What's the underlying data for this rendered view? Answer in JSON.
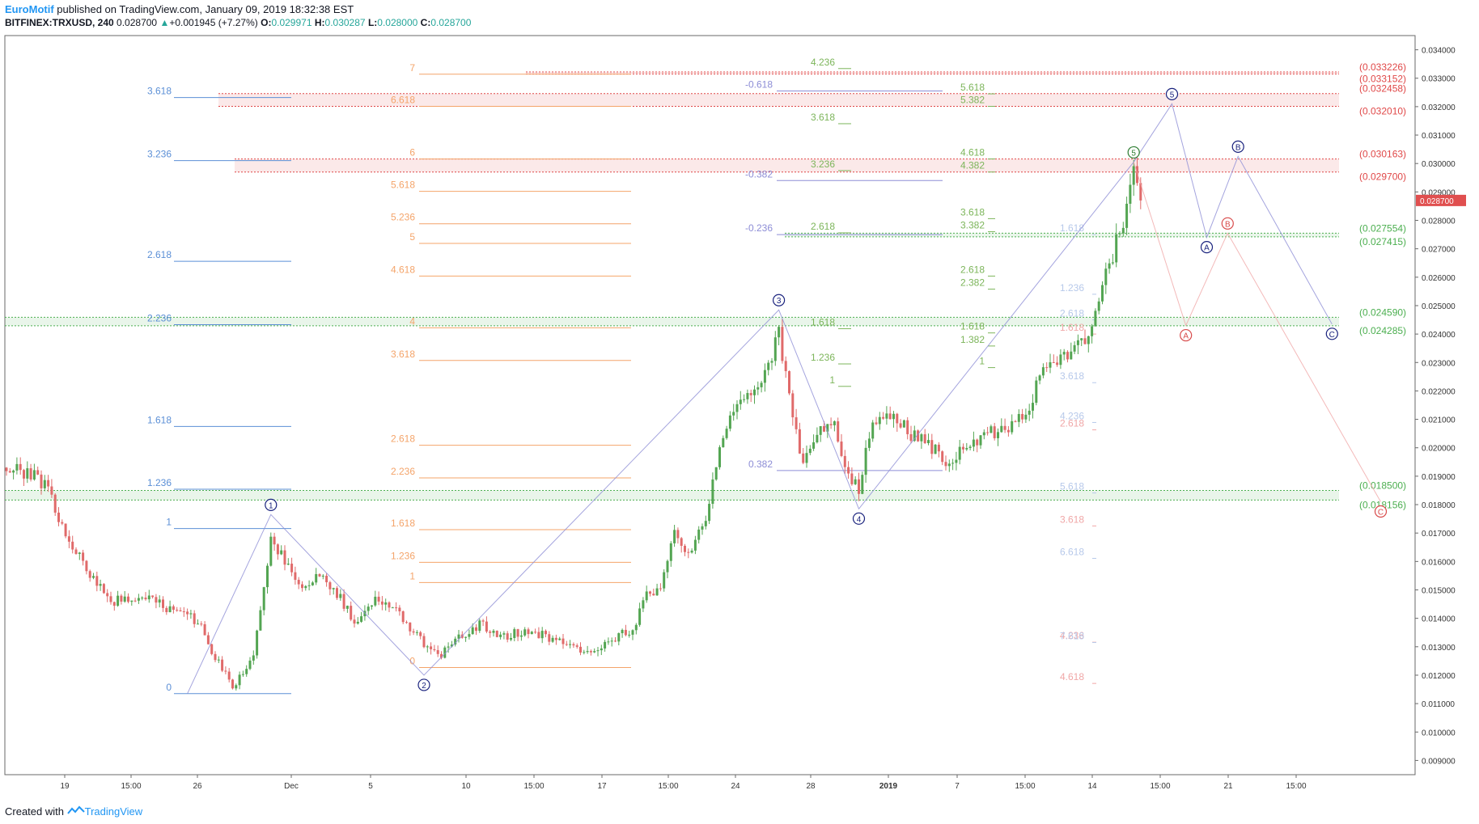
{
  "header": {
    "author": "EuroMotif",
    "published": "published on TradingView.com, January 09, 2019 18:32:38 EST",
    "symbol": "BITFINEX:TRXUSD, 240",
    "last": "0.028700",
    "change": "+0.001945 (+7.27%)",
    "o_label": "O:",
    "o": "0.029971",
    "h_label": "H:",
    "h": "0.030287",
    "l_label": "L:",
    "l": "0.028000",
    "c_label": "C:",
    "c": "0.028700"
  },
  "footer": {
    "created": "Created with",
    "brand": "TradingView"
  },
  "colors": {
    "up": "#53a552",
    "down": "#e06a6a",
    "blue_fib": "#5b8fd6",
    "orange_fib": "#f4a46a",
    "green_fib": "#7cb55a",
    "purple": "#8d8dd6",
    "red_zone": "#e04848",
    "green_zone": "#4caf50",
    "wave_blue": "#1a237e",
    "wave_red": "#d84a4a"
  },
  "chart_data": {
    "type": "candlestick",
    "ylim": [
      0.0085,
      0.0345
    ],
    "y_ticks": [
      "0.034000",
      "0.033000",
      "0.032000",
      "0.031000",
      "0.030000",
      "0.029000",
      "0.028000",
      "0.027000",
      "0.026000",
      "0.025000",
      "0.024000",
      "0.023000",
      "0.022000",
      "0.021000",
      "0.020000",
      "0.019000",
      "0.018000",
      "0.017000",
      "0.016000",
      "0.015000",
      "0.014000",
      "0.013000",
      "0.012000",
      "0.011000",
      "0.010000",
      "0.009000"
    ],
    "x_ticks": [
      "19",
      "15:00",
      "26",
      "Dec",
      "5",
      "10",
      "15:00",
      "17",
      "15:00",
      "24",
      "28",
      "2019",
      "7",
      "15:00",
      "14",
      "15:00",
      "21",
      "15:00"
    ],
    "current_price": "0.028700",
    "anchors": [
      {
        "b": 0,
        "p": 0.0193
      },
      {
        "b": 8,
        "p": 0.019
      },
      {
        "b": 12,
        "p": 0.0186
      },
      {
        "b": 16,
        "p": 0.0172
      },
      {
        "b": 22,
        "p": 0.0159
      },
      {
        "b": 30,
        "p": 0.0146
      },
      {
        "b": 40,
        "p": 0.0147
      },
      {
        "b": 55,
        "p": 0.0139
      },
      {
        "b": 60,
        "p": 0.0126
      },
      {
        "b": 65,
        "p": 0.0116
      },
      {
        "b": 71,
        "p": 0.0126
      },
      {
        "b": 76,
        "p": 0.0168
      },
      {
        "b": 80,
        "p": 0.016
      },
      {
        "b": 84,
        "p": 0.0151
      },
      {
        "b": 90,
        "p": 0.0155
      },
      {
        "b": 96,
        "p": 0.0147
      },
      {
        "b": 100,
        "p": 0.0139
      },
      {
        "b": 106,
        "p": 0.0147
      },
      {
        "b": 112,
        "p": 0.0143
      },
      {
        "b": 120,
        "p": 0.0131
      },
      {
        "b": 125,
        "p": 0.0127
      },
      {
        "b": 130,
        "p": 0.0133
      },
      {
        "b": 136,
        "p": 0.0138
      },
      {
        "b": 142,
        "p": 0.0133
      },
      {
        "b": 150,
        "p": 0.0136
      },
      {
        "b": 156,
        "p": 0.0133
      },
      {
        "b": 162,
        "p": 0.013
      },
      {
        "b": 168,
        "p": 0.0128
      },
      {
        "b": 174,
        "p": 0.0133
      },
      {
        "b": 180,
        "p": 0.0136
      },
      {
        "b": 184,
        "p": 0.0148
      },
      {
        "b": 188,
        "p": 0.015
      },
      {
        "b": 192,
        "p": 0.017
      },
      {
        "b": 196,
        "p": 0.0163
      },
      {
        "b": 201,
        "p": 0.0175
      },
      {
        "b": 206,
        "p": 0.0205
      },
      {
        "b": 212,
        "p": 0.0218
      },
      {
        "b": 218,
        "p": 0.0225
      },
      {
        "b": 222,
        "p": 0.024
      },
      {
        "b": 226,
        "p": 0.0213
      },
      {
        "b": 229,
        "p": 0.0193
      },
      {
        "b": 233,
        "p": 0.0206
      },
      {
        "b": 238,
        "p": 0.0208
      },
      {
        "b": 242,
        "p": 0.019
      },
      {
        "b": 245,
        "p": 0.0185
      },
      {
        "b": 249,
        "p": 0.021
      },
      {
        "b": 254,
        "p": 0.0212
      },
      {
        "b": 260,
        "p": 0.0205
      },
      {
        "b": 266,
        "p": 0.02
      },
      {
        "b": 270,
        "p": 0.0195
      },
      {
        "b": 276,
        "p": 0.02
      },
      {
        "b": 282,
        "p": 0.0205
      },
      {
        "b": 288,
        "p": 0.0206
      },
      {
        "b": 293,
        "p": 0.0212
      },
      {
        "b": 298,
        "p": 0.0228
      },
      {
        "b": 304,
        "p": 0.0233
      },
      {
        "b": 310,
        "p": 0.0237
      },
      {
        "b": 314,
        "p": 0.0252
      },
      {
        "b": 318,
        "p": 0.0268
      },
      {
        "b": 322,
        "p": 0.0283
      },
      {
        "b": 324,
        "p": 0.03
      },
      {
        "b": 326,
        "p": 0.0287
      }
    ],
    "fibs": [
      {
        "color": "#5b8fd6",
        "levels": [
          [
            "3.618",
            0.03232
          ],
          [
            "3.236",
            0.0301
          ],
          [
            "2.618",
            0.02656
          ],
          [
            "2.236",
            0.02433
          ],
          [
            "1.618",
            0.02075
          ],
          [
            "1.236",
            0.01854
          ],
          [
            "1",
            0.01716
          ],
          [
            "0",
            0.01135
          ]
        ]
      },
      {
        "color": "#f4a46a",
        "levels": [
          [
            "7",
            0.03314
          ],
          [
            "6.618",
            0.03201
          ],
          [
            "6",
            0.03016
          ],
          [
            "5.618",
            0.02902
          ],
          [
            "5.236",
            0.02788
          ],
          [
            "5",
            0.02719
          ],
          [
            "4.618",
            0.02604
          ],
          [
            "4",
            0.02422
          ],
          [
            "3.618",
            0.02307
          ],
          [
            "2.618",
            0.02009
          ],
          [
            "2.236",
            0.01894
          ],
          [
            "1.618",
            0.01712
          ],
          [
            "1.236",
            0.01597
          ],
          [
            "1",
            0.01526
          ],
          [
            "0",
            0.01227
          ]
        ]
      },
      {
        "color": "#7cb55a",
        "levels": [
          [
            "4.236",
            0.03334
          ],
          [
            "3.618",
            0.0314
          ],
          [
            "3.236",
            0.02975
          ],
          [
            "2.618",
            0.02756
          ],
          [
            "1.618",
            0.02419
          ],
          [
            "1.236",
            0.02295
          ],
          [
            "1",
            0.02216
          ]
        ]
      },
      {
        "color": "#7cb55a",
        "levels": [
          [
            "5.618",
            0.03245
          ],
          [
            "5.382",
            0.03201
          ],
          [
            "4.618",
            0.03016
          ],
          [
            "4.382",
            0.0297
          ],
          [
            "3.618",
            0.02806
          ],
          [
            "3.382",
            0.0276
          ],
          [
            "2.618",
            0.02604
          ],
          [
            "2.382",
            0.02558
          ],
          [
            "1.618",
            0.02404
          ],
          [
            "1.382",
            0.02358
          ],
          [
            "1",
            0.02282
          ]
        ]
      },
      {
        "color": "#f0a7a7",
        "levels": [
          [
            "1.618",
            0.024
          ],
          [
            "2.618",
            0.02063
          ],
          [
            "3.618",
            0.01725
          ],
          [
            "4.236",
            0.01316
          ],
          [
            "4.618",
            0.01171
          ]
        ]
      },
      {
        "color": "#b7c9ea",
        "levels": [
          [
            "1.618",
            0.0275
          ],
          [
            "1.236",
            0.0254
          ],
          [
            "2.618",
            0.0245
          ],
          [
            "3.618",
            0.02229
          ],
          [
            "4.236",
            0.02089
          ],
          [
            "5.618",
            0.01841
          ],
          [
            "6.618",
            0.01611
          ],
          [
            "7.618",
            0.01315
          ]
        ]
      },
      {
        "color": "#8d8dd6",
        "levels": [
          [
            "-0.618",
            0.03255
          ],
          [
            "-0.382",
            0.0294
          ],
          [
            "-0.236",
            0.0275
          ],
          [
            "0.382",
            0.0192
          ]
        ]
      }
    ],
    "zones": [
      {
        "type": "red",
        "top": "0.033226",
        "bottom": "0.033152",
        "p1": 0.03322,
        "p2": 0.03315
      },
      {
        "type": "red",
        "top": "0.032458",
        "bottom": "0.032010",
        "p1": 0.03246,
        "p2": 0.03201
      },
      {
        "type": "red",
        "top": "0.030163",
        "bottom": "0.029700",
        "p1": 0.03016,
        "p2": 0.0297
      },
      {
        "type": "green",
        "top": "0.027554",
        "bottom": "0.027415",
        "p1": 0.02755,
        "p2": 0.02742
      },
      {
        "type": "green",
        "top": "0.024590",
        "bottom": "0.024285",
        "p1": 0.02459,
        "p2": 0.02429
      },
      {
        "type": "green",
        "top": "0.018500",
        "bottom": "0.018156",
        "p1": 0.0185,
        "p2": 0.01816
      }
    ],
    "waves": [
      {
        "label": "1",
        "b": 76,
        "p": 0.01765
      },
      {
        "label": "2",
        "b": 120,
        "p": 0.012
      },
      {
        "label": "3",
        "b": 222,
        "p": 0.02485
      },
      {
        "label": "4",
        "b": 245,
        "p": 0.01785
      },
      {
        "label": "5",
        "b": 324,
        "p": 0.03005
      },
      {
        "label": "5",
        "b": 335,
        "p": 0.0321
      },
      {
        "label": "A",
        "b": 345,
        "p": 0.0274
      },
      {
        "label": "B",
        "b": 354,
        "p": 0.03025
      },
      {
        "label": "C",
        "b": 381,
        "p": 0.02435
      }
    ],
    "alt_waves": [
      {
        "label": "A",
        "b": 339,
        "p": 0.0243
      },
      {
        "label": "B",
        "b": 351,
        "p": 0.02755
      },
      {
        "label": "C",
        "b": 395,
        "p": 0.0181
      }
    ]
  }
}
